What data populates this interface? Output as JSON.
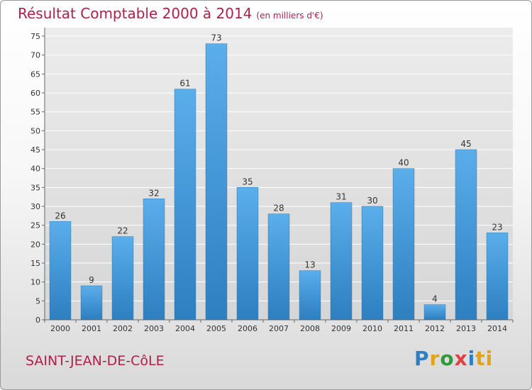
{
  "header": {
    "title": "Résultat Comptable 2000 à 2014",
    "subtitle": "(en milliers d'€)"
  },
  "footer": {
    "place": "SAINT-JEAN-DE-CôLE",
    "logo": [
      "P",
      "r",
      "o",
      "x",
      "i",
      "ti"
    ]
  },
  "chart_data": {
    "type": "bar",
    "title": "Résultat Comptable 2000 à 2014",
    "subtitle": "(en milliers d'€)",
    "categories": [
      "2000",
      "2001",
      "2002",
      "2003",
      "2004",
      "2005",
      "2006",
      "2007",
      "2008",
      "2009",
      "2010",
      "2011",
      "2012",
      "2013",
      "2014"
    ],
    "values": [
      26,
      9,
      22,
      32,
      61,
      73,
      35,
      28,
      13,
      31,
      30,
      40,
      4,
      45,
      23
    ],
    "ylim": [
      0,
      75
    ],
    "yticks": [
      0,
      5,
      10,
      15,
      20,
      25,
      30,
      35,
      40,
      45,
      50,
      55,
      60,
      65,
      70,
      75
    ],
    "grid": true,
    "bar_color": "#3a93d8"
  }
}
